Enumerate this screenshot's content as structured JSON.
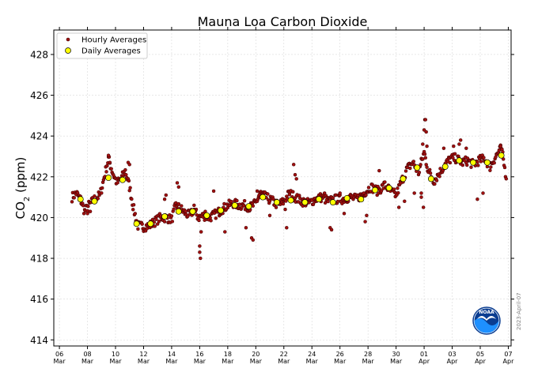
{
  "chart_data": {
    "type": "scatter",
    "title": "Mauna Loa Carbon Dioxide",
    "ylabel": {
      "main": "CO",
      "sub": "2",
      "unit": " (ppm)"
    },
    "xlabel": "",
    "ylim": [
      413.7,
      429.2
    ],
    "xlim": [
      -0.4,
      32.2
    ],
    "yticks": [
      414,
      416,
      418,
      420,
      422,
      424,
      426,
      428
    ],
    "xticks": [
      {
        "x": 0,
        "day": "06",
        "month": "Mar"
      },
      {
        "x": 2,
        "day": "08",
        "month": "Mar"
      },
      {
        "x": 4,
        "day": "10",
        "month": "Mar"
      },
      {
        "x": 6,
        "day": "12",
        "month": "Mar"
      },
      {
        "x": 8,
        "day": "14",
        "month": "Mar"
      },
      {
        "x": 10,
        "day": "16",
        "month": "Mar"
      },
      {
        "x": 12,
        "day": "18",
        "month": "Mar"
      },
      {
        "x": 14,
        "day": "20",
        "month": "Mar"
      },
      {
        "x": 16,
        "day": "22",
        "month": "Mar"
      },
      {
        "x": 18,
        "day": "24",
        "month": "Mar"
      },
      {
        "x": 20,
        "day": "26",
        "month": "Mar"
      },
      {
        "x": 22,
        "day": "28",
        "month": "Mar"
      },
      {
        "x": 24,
        "day": "30",
        "month": "Mar"
      },
      {
        "x": 26,
        "day": "01",
        "month": "Apr"
      },
      {
        "x": 28,
        "day": "03",
        "month": "Apr"
      },
      {
        "x": 30,
        "day": "05",
        "month": "Apr"
      },
      {
        "x": 32,
        "day": "07",
        "month": "Apr"
      }
    ],
    "grid": true,
    "legend": {
      "position": "top-left",
      "entries": [
        "Hourly Averages",
        "Daily Averages"
      ]
    },
    "x_units": "days since 06 Mar 2023",
    "series": [
      {
        "name": "Daily Averages",
        "color": "#ffff00",
        "x": [
          1.5,
          2.5,
          3.5,
          4.5,
          5.5,
          6.5,
          7.5,
          8.5,
          9.5,
          10.5,
          11.5,
          12.5,
          13.5,
          14.5,
          15.5,
          16.5,
          17.5,
          18.5,
          19.5,
          20.5,
          21.5,
          22.5,
          23.5,
          24.5,
          25.5,
          26.5,
          27.5,
          28.5,
          29.5,
          30.5,
          31.5
        ],
        "values": [
          420.9,
          420.8,
          421.95,
          421.85,
          419.7,
          419.7,
          420.05,
          420.3,
          420.3,
          420.1,
          420.35,
          420.6,
          420.55,
          421.0,
          420.75,
          420.85,
          420.75,
          420.9,
          420.75,
          420.95,
          420.9,
          421.35,
          421.45,
          421.9,
          422.45,
          421.9,
          422.5,
          422.8,
          422.7,
          422.7,
          423.05
        ]
      },
      {
        "name": "Hourly Averages",
        "color": "#a01010",
        "control": [
          [
            0.9,
            421.0
          ],
          [
            1.2,
            421.2
          ],
          [
            1.5,
            420.9
          ],
          [
            1.8,
            420.3
          ],
          [
            2.1,
            420.6
          ],
          [
            2.5,
            420.9
          ],
          [
            2.9,
            421.1
          ],
          [
            3.3,
            422.3
          ],
          [
            3.5,
            422.9
          ],
          [
            3.8,
            422.2
          ],
          [
            4.1,
            421.7
          ],
          [
            4.4,
            421.9
          ],
          [
            4.7,
            422.3
          ],
          [
            5.0,
            421.5
          ],
          [
            5.3,
            420.4
          ],
          [
            5.6,
            419.6
          ],
          [
            6.0,
            419.55
          ],
          [
            6.4,
            419.6
          ],
          [
            6.8,
            419.8
          ],
          [
            7.2,
            420.0
          ],
          [
            7.6,
            420.0
          ],
          [
            8.0,
            419.9
          ],
          [
            8.3,
            420.6
          ],
          [
            8.7,
            420.4
          ],
          [
            9.0,
            420.2
          ],
          [
            9.3,
            420.1
          ],
          [
            9.6,
            420.4
          ],
          [
            9.9,
            420.0
          ],
          [
            10.3,
            420.1
          ],
          [
            10.7,
            420.0
          ],
          [
            11.2,
            420.2
          ],
          [
            11.6,
            420.4
          ],
          [
            12.0,
            420.6
          ],
          [
            12.4,
            420.7
          ],
          [
            12.8,
            420.6
          ],
          [
            13.2,
            420.6
          ],
          [
            13.6,
            420.5
          ],
          [
            14.0,
            420.7
          ],
          [
            14.3,
            421.2
          ],
          [
            14.7,
            421.0
          ],
          [
            15.2,
            420.8
          ],
          [
            15.6,
            420.6
          ],
          [
            16.0,
            420.8
          ],
          [
            16.4,
            421.2
          ],
          [
            16.8,
            421.0
          ],
          [
            17.3,
            420.8
          ],
          [
            17.8,
            420.7
          ],
          [
            18.2,
            420.9
          ],
          [
            18.7,
            421.0
          ],
          [
            19.2,
            420.8
          ],
          [
            19.7,
            420.9
          ],
          [
            20.2,
            420.9
          ],
          [
            20.7,
            421.0
          ],
          [
            21.2,
            420.9
          ],
          [
            21.7,
            421.2
          ],
          [
            22.2,
            421.5
          ],
          [
            22.7,
            421.3
          ],
          [
            23.2,
            421.6
          ],
          [
            23.6,
            421.3
          ],
          [
            24.0,
            421.1
          ],
          [
            24.4,
            421.8
          ],
          [
            24.8,
            422.4
          ],
          [
            25.2,
            422.7
          ],
          [
            25.6,
            422.2
          ],
          [
            26.0,
            423.2
          ],
          [
            26.3,
            422.3
          ],
          [
            26.7,
            421.8
          ],
          [
            27.1,
            422.2
          ],
          [
            27.5,
            422.6
          ],
          [
            27.9,
            422.9
          ],
          [
            28.3,
            422.9
          ],
          [
            28.7,
            422.7
          ],
          [
            29.1,
            422.8
          ],
          [
            29.5,
            422.6
          ],
          [
            29.9,
            422.8
          ],
          [
            30.3,
            422.9
          ],
          [
            30.7,
            422.5
          ],
          [
            31.1,
            423.0
          ],
          [
            31.5,
            423.4
          ],
          [
            31.9,
            421.8
          ]
        ],
        "excursions": [
          [
            2.0,
            420.2
          ],
          [
            2.2,
            420.3
          ],
          [
            3.5,
            423.05
          ],
          [
            3.6,
            422.7
          ],
          [
            4.9,
            422.7
          ],
          [
            5.0,
            422.6
          ],
          [
            7.5,
            420.9
          ],
          [
            7.6,
            421.1
          ],
          [
            8.4,
            421.7
          ],
          [
            8.5,
            421.5
          ],
          [
            9.6,
            420.6
          ],
          [
            9.7,
            420.3
          ],
          [
            10.0,
            418.6
          ],
          [
            10.0,
            418.3
          ],
          [
            10.05,
            418.0
          ],
          [
            10.1,
            419.3
          ],
          [
            10.4,
            420.3
          ],
          [
            11.0,
            421.3
          ],
          [
            11.8,
            419.3
          ],
          [
            13.3,
            419.5
          ],
          [
            13.7,
            419.0
          ],
          [
            13.8,
            418.9
          ],
          [
            14.1,
            421.3
          ],
          [
            14.3,
            421.0
          ],
          [
            15.0,
            420.1
          ],
          [
            16.1,
            420.4
          ],
          [
            16.2,
            419.5
          ],
          [
            16.7,
            422.6
          ],
          [
            16.8,
            422.1
          ],
          [
            16.9,
            421.9
          ],
          [
            18.9,
            421.2
          ],
          [
            19.3,
            419.5
          ],
          [
            19.4,
            419.4
          ],
          [
            20.0,
            421.2
          ],
          [
            20.3,
            420.2
          ],
          [
            21.8,
            419.8
          ],
          [
            21.9,
            420.1
          ],
          [
            22.8,
            422.3
          ],
          [
            24.2,
            420.5
          ],
          [
            24.6,
            420.8
          ],
          [
            25.3,
            421.2
          ],
          [
            25.8,
            421.2
          ],
          [
            26.05,
            424.8
          ],
          [
            26.1,
            424.8
          ],
          [
            26.0,
            424.3
          ],
          [
            26.15,
            424.2
          ],
          [
            25.9,
            423.6
          ],
          [
            26.2,
            423.5
          ],
          [
            25.8,
            421.0
          ],
          [
            25.95,
            420.5
          ],
          [
            27.4,
            423.4
          ],
          [
            28.1,
            423.5
          ],
          [
            28.5,
            423.6
          ],
          [
            28.6,
            423.8
          ],
          [
            29.0,
            423.4
          ],
          [
            29.8,
            420.9
          ],
          [
            30.2,
            421.2
          ],
          [
            31.45,
            423.5
          ],
          [
            31.35,
            423.3
          ]
        ]
      }
    ]
  },
  "annotations": {
    "date_stamp": "2023-April-07",
    "logo_text": "NOAA"
  }
}
